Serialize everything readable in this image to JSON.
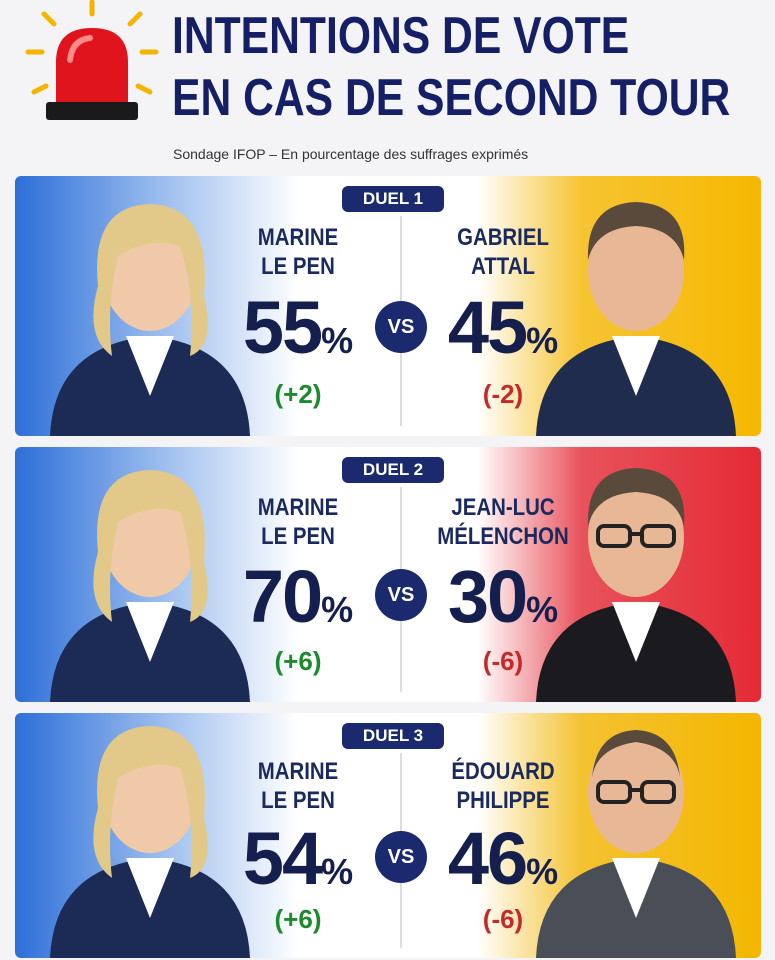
{
  "header": {
    "title": [
      "INTENTIONS DE VOTE",
      "EN CAS DE SECOND TOUR"
    ],
    "subtitle": "Sondage IFOP – En pourcentage des suffrages exprimés"
  },
  "vs": "VS",
  "duels": [
    {
      "label": "DUEL 1",
      "left": {
        "name": [
          "MARINE",
          "LE PEN"
        ],
        "percent": "55",
        "sign": "%",
        "change": "(+2)"
      },
      "right": {
        "name": [
          "GABRIEL",
          "ATTAL"
        ],
        "percent": "45",
        "sign": "%",
        "change": "(-2)"
      }
    },
    {
      "label": "DUEL 2",
      "left": {
        "name": [
          "MARINE",
          "LE PEN"
        ],
        "percent": "70",
        "sign": "%",
        "change": "(+6)"
      },
      "right": {
        "name": [
          "JEAN-LUC",
          "MÉLENCHON"
        ],
        "percent": "30",
        "sign": "%",
        "change": "(-6)"
      }
    },
    {
      "label": "DUEL 3",
      "left": {
        "name": [
          "MARINE",
          "LE PEN"
        ],
        "percent": "54",
        "sign": "%",
        "change": "(+6)"
      },
      "right": {
        "name": [
          "ÉDOUARD",
          "PHILIPPE"
        ],
        "percent": "46",
        "sign": "%",
        "change": "(-6)"
      }
    }
  ]
}
